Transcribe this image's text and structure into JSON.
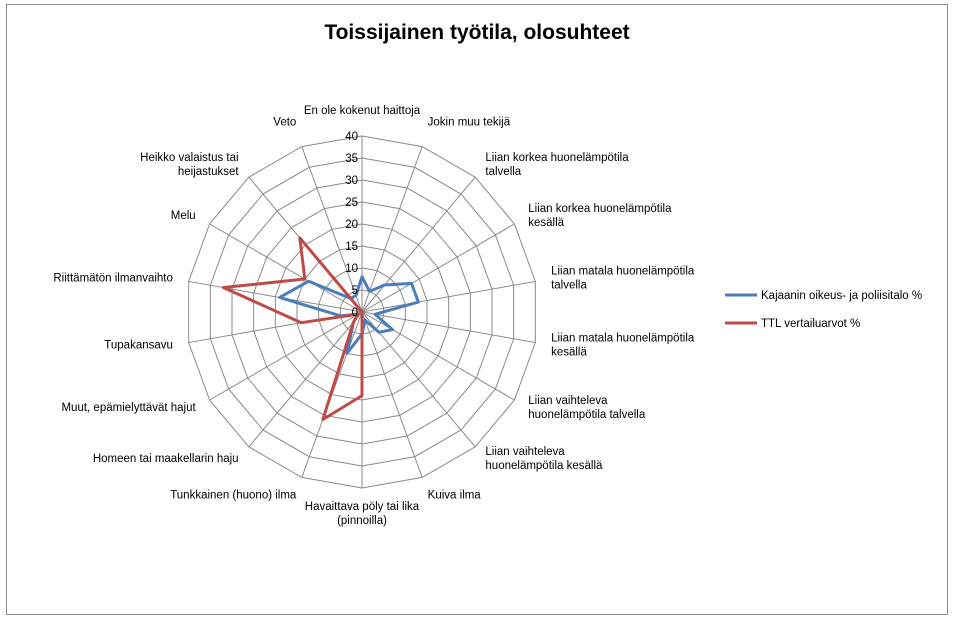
{
  "chart_data": {
    "type": "radar",
    "title": "Toissijainen työtila, olosuhteet",
    "categories": [
      "En ole kokenut haittoja",
      "Jokin muu tekijä",
      "Liian korkea huonelämpötila talvella",
      "Liian korkea huonelämpötila kesällä",
      "Liian matala huonelämpötila talvella",
      "Liian matala huonelämpötila kesällä",
      "Liian vaihteleva huonelämpötila talvella",
      "Liian vaihteleva huonelämpötila kesällä",
      "Kuiva ilma",
      "Havaittava pöly tai lika (pinnoilla)",
      "Tunkkainen (huono) ilma",
      "Homeen tai maakellarin haju",
      "Muut, epämiellyttävät hajut",
      "Tupakansavu",
      "Riittämätön ilmanvaihto",
      "Melu",
      "Heikko valaistus tai heijastukset",
      "Veto"
    ],
    "category_lines": [
      [
        "En ole kokenut haittoja"
      ],
      [
        "Jokin muu tekijä"
      ],
      [
        "Liian korkea huonelämpötila",
        "talvella"
      ],
      [
        "Liian korkea huonelämpötila",
        "kesällä"
      ],
      [
        "Liian matala huonelämpötila",
        "talvella"
      ],
      [
        "Liian matala huonelämpötila",
        "kesällä"
      ],
      [
        "Liian vaihteleva",
        "huonelämpötila talvella"
      ],
      [
        "Liian vaihteleva",
        "huonelämpötila kesällä"
      ],
      [
        "Kuiva ilma"
      ],
      [
        "Havaittava pöly tai lika",
        "(pinnoilla)"
      ],
      [
        "Tunkkainen (huono) ilma"
      ],
      [
        "Homeen tai maakellarin haju"
      ],
      [
        "Muut, epämielyttävät hajut"
      ],
      [
        "Tupakansavu"
      ],
      [
        "Riittämätön ilmanvaihto"
      ],
      [
        "Melu"
      ],
      [
        "Heikko valaistus tai",
        "heijastukset"
      ],
      [
        "Veto"
      ]
    ],
    "r_range": [
      0,
      40
    ],
    "r_ticks": [
      0,
      5,
      10,
      15,
      20,
      25,
      30,
      35,
      40
    ],
    "series": [
      {
        "name": "Kajaanin oikeus- ja poliisitalo %",
        "color": "#4a7ebb",
        "values": [
          8,
          5,
          8,
          13,
          13,
          3,
          8,
          6,
          2,
          5,
          10,
          3,
          1,
          5,
          19,
          14,
          4,
          4
        ]
      },
      {
        "name": "TTL vertailuarvot %",
        "color": "#be4b48",
        "values": [
          0,
          0,
          0,
          0,
          0,
          0,
          0,
          0,
          0,
          19,
          26,
          3,
          1,
          14,
          32,
          15,
          22,
          0
        ]
      }
    ],
    "legend_position": "right",
    "grid": true
  }
}
